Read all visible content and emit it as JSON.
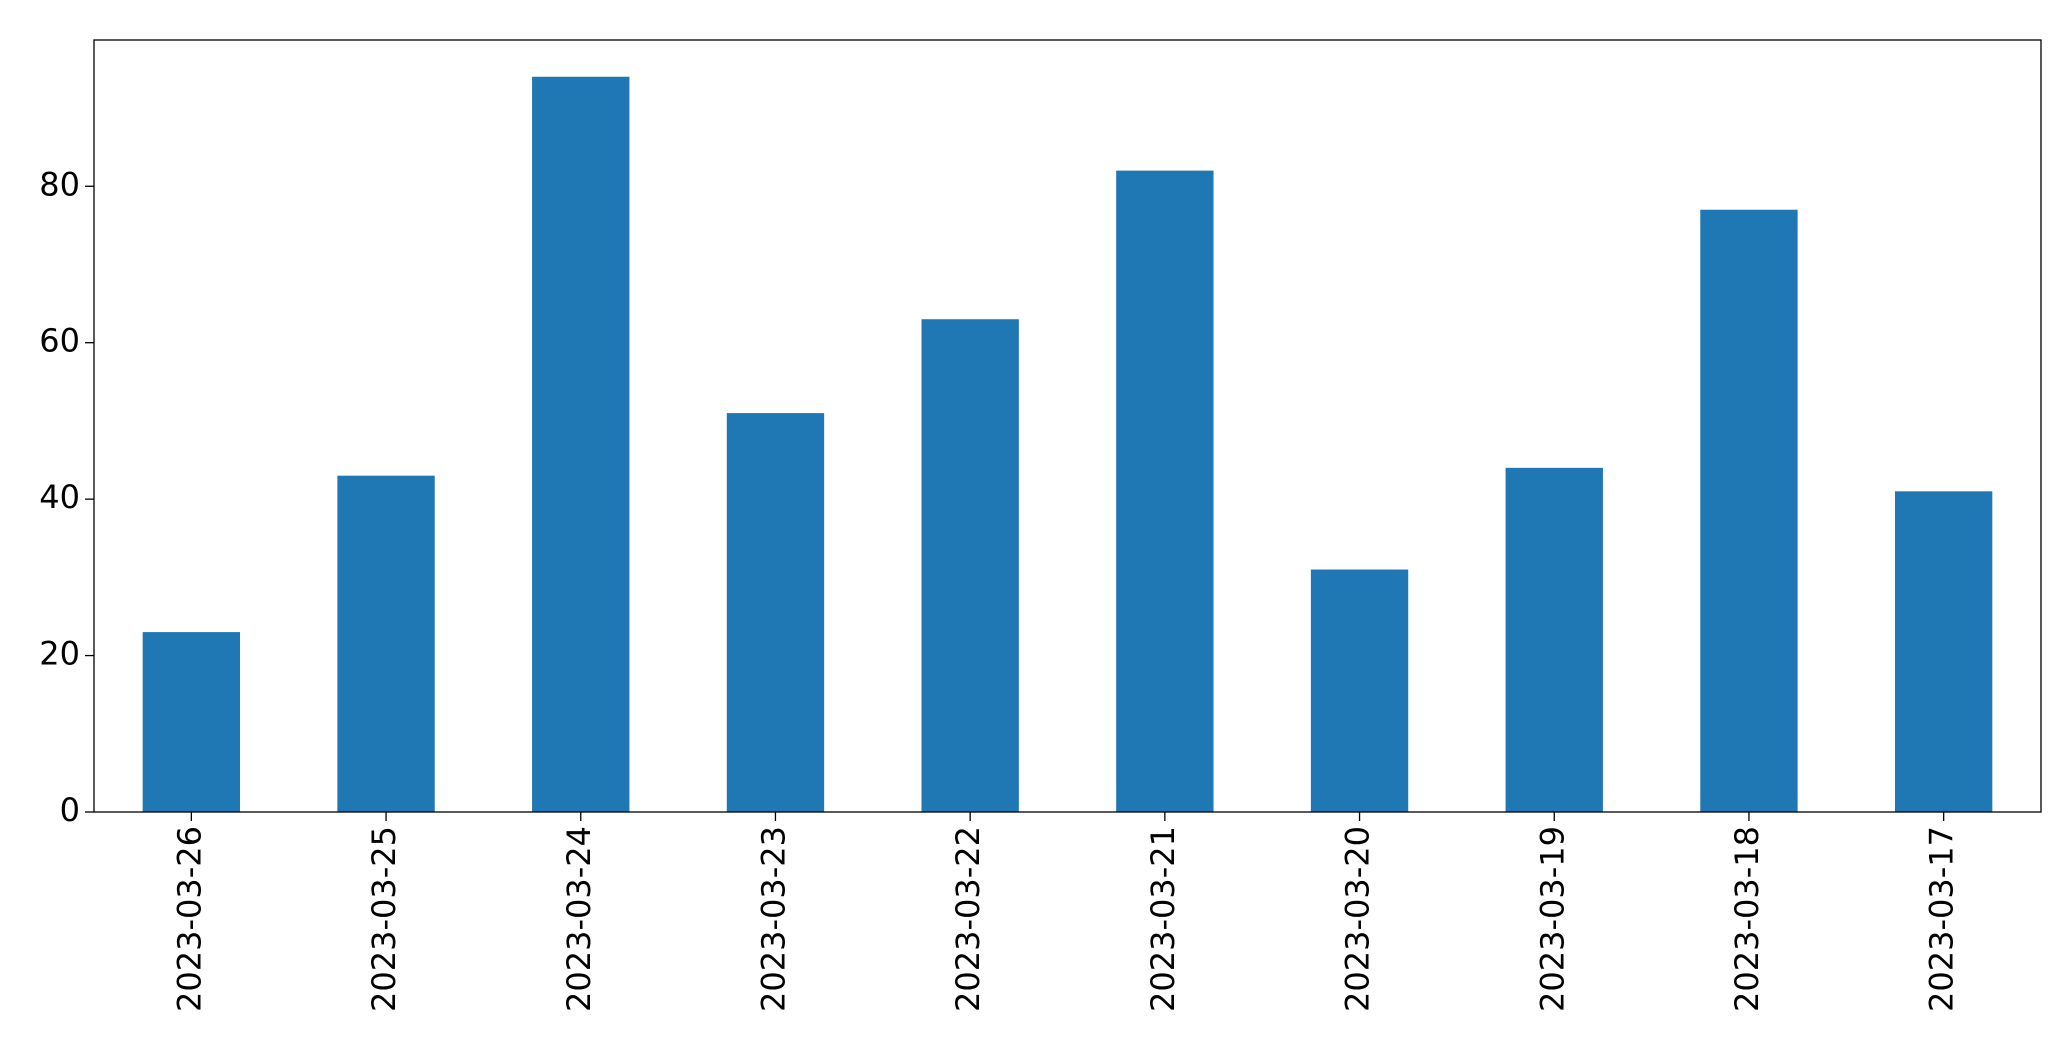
{
  "chart_data": {
    "type": "bar",
    "categories": [
      "2023-03-26",
      "2023-03-25",
      "2023-03-24",
      "2023-03-23",
      "2023-03-22",
      "2023-03-21",
      "2023-03-20",
      "2023-03-19",
      "2023-03-18",
      "2023-03-17"
    ],
    "values": [
      23,
      43,
      94,
      51,
      63,
      82,
      31,
      44,
      77,
      41
    ],
    "color": "#1f77b4",
    "ylim": [
      0,
      98.7
    ],
    "yticks": [
      0,
      20,
      40,
      60,
      80
    ],
    "grid": false
  }
}
